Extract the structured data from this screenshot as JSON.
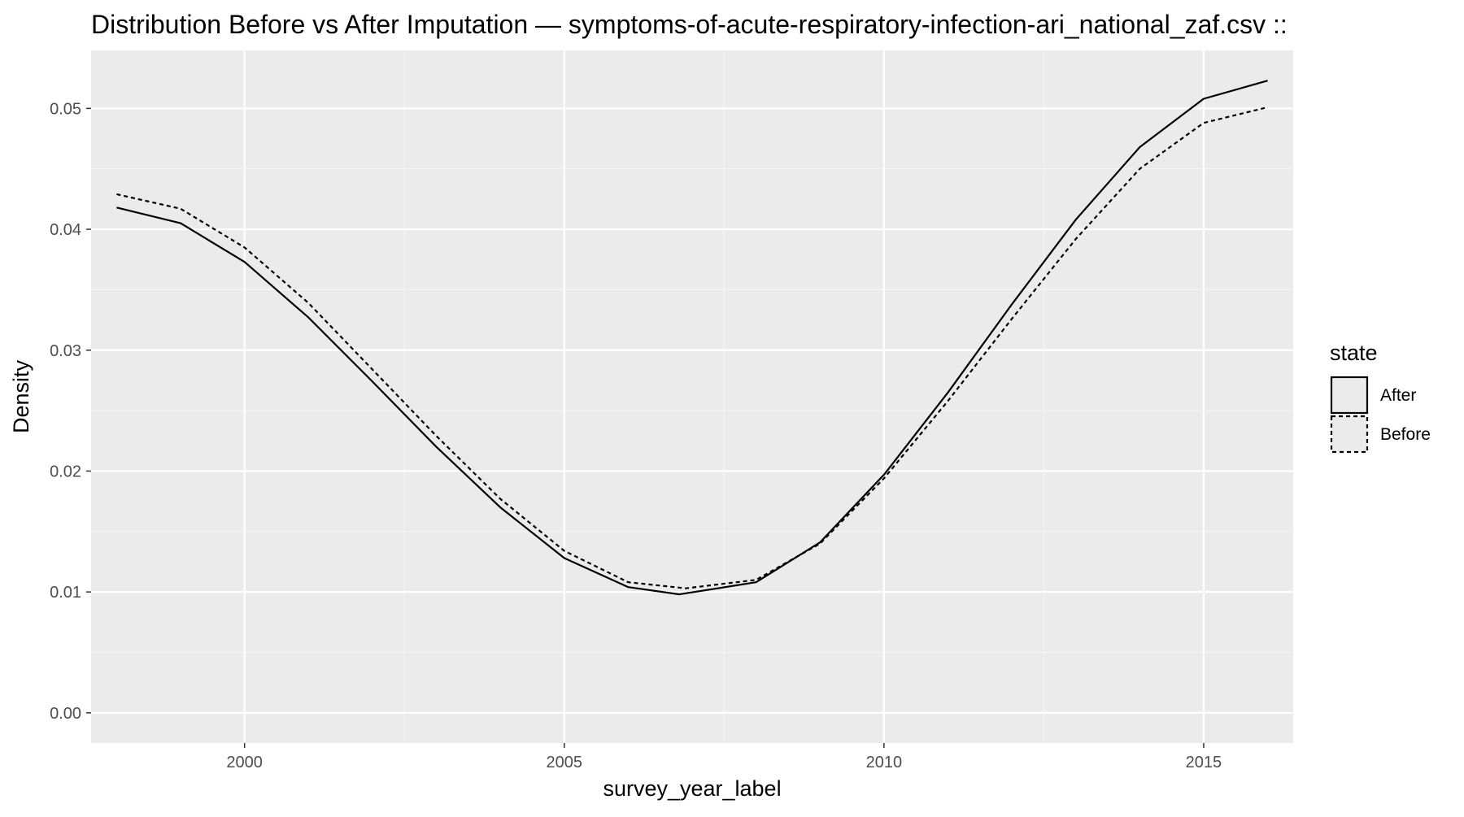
{
  "chart_data": {
    "type": "line",
    "title": "Distribution Before vs After Imputation — symptoms-of-acute-respiratory-infection-ari_national_zaf.csv ::",
    "xlabel": "survey_year_label",
    "ylabel": "Density",
    "xlim": [
      1997.6,
      2016.4
    ],
    "ylim": [
      -0.0025,
      0.0548
    ],
    "x_ticks": [
      2000,
      2005,
      2010,
      2015
    ],
    "x_tick_labels": [
      "2000",
      "2005",
      "2010",
      "2015"
    ],
    "y_ticks": [
      0.0,
      0.01,
      0.02,
      0.03,
      0.04,
      0.05
    ],
    "y_tick_labels": [
      "0.00",
      "0.01",
      "0.02",
      "0.03",
      "0.04",
      "0.05"
    ],
    "grid": true,
    "legend": {
      "title": "state",
      "position": "right",
      "entries": [
        "After",
        "Before"
      ]
    },
    "series": [
      {
        "name": "After",
        "line_style": "solid",
        "color": "#000000",
        "x": [
          1998,
          1999,
          2000,
          2001,
          2002,
          2003,
          2004,
          2005,
          2006,
          2006.8,
          2008,
          2009,
          2010,
          2011,
          2012,
          2013,
          2014,
          2015,
          2016
        ],
        "y": [
          0.0418,
          0.0405,
          0.0373,
          0.0327,
          0.0274,
          0.022,
          0.017,
          0.0128,
          0.0104,
          0.0098,
          0.0108,
          0.0141,
          0.0197,
          0.0265,
          0.0338,
          0.0408,
          0.0468,
          0.0508,
          0.0523
        ]
      },
      {
        "name": "Before",
        "line_style": "dashed",
        "color": "#000000",
        "x": [
          1998,
          1999,
          2000,
          2001,
          2002,
          2003,
          2004,
          2005,
          2006,
          2006.9,
          2008,
          2009,
          2010,
          2011,
          2012,
          2013,
          2014,
          2015,
          2016
        ],
        "y": [
          0.0429,
          0.0417,
          0.0385,
          0.0339,
          0.0284,
          0.0229,
          0.0177,
          0.0134,
          0.0108,
          0.0103,
          0.011,
          0.014,
          0.0194,
          0.0258,
          0.0326,
          0.0392,
          0.045,
          0.0488,
          0.0501
        ]
      }
    ],
    "colors": {
      "panel_background": "#ebebeb",
      "grid_major": "#ffffff",
      "grid_minor": "#f5f5f5",
      "line": "#000000",
      "legend_key_fill": "#ebebeb"
    }
  }
}
